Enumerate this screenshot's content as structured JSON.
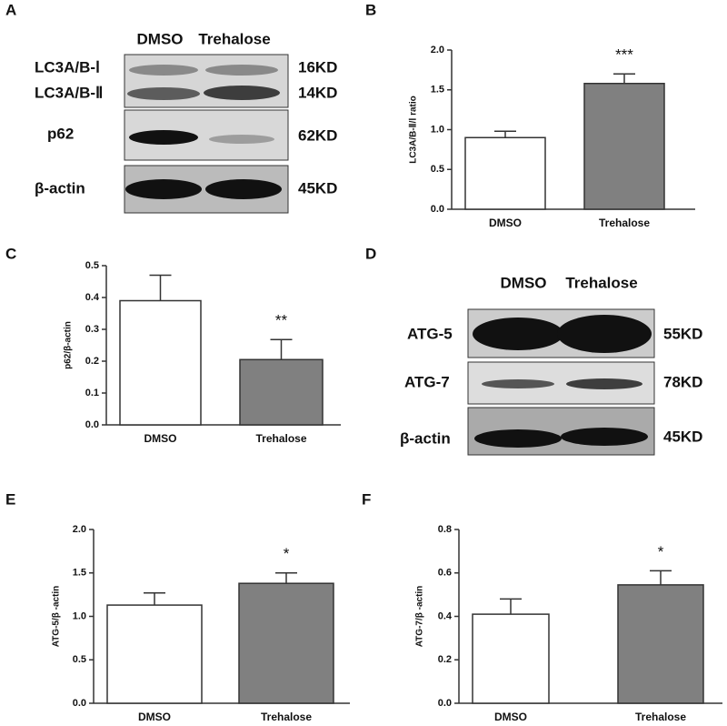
{
  "panel_labels": [
    "A",
    "B",
    "C",
    "D",
    "E",
    "F"
  ],
  "blot_a": {
    "columns": [
      "DMSO",
      "Trehalose"
    ],
    "rows": [
      {
        "label": "LC3A/B-Ⅰ",
        "size": "16KD"
      },
      {
        "label": "LC3A/B-Ⅱ",
        "size": "14KD"
      },
      {
        "label": "p62",
        "size": "62KD"
      },
      {
        "label": "β-actin",
        "size": "45KD"
      }
    ]
  },
  "blot_d": {
    "columns": [
      "DMSO",
      "Trehalose"
    ],
    "rows": [
      {
        "label": "ATG-5",
        "size": "55KD"
      },
      {
        "label": "ATG-7",
        "size": "78KD"
      },
      {
        "label": "β-actin",
        "size": "45KD"
      }
    ]
  },
  "chart_data": [
    {
      "type": "bar",
      "y_label": "LC3A/B-Ⅱ/Ⅰ ratio",
      "categories": [
        "DMSO",
        "Trehalose"
      ],
      "values": [
        0.9,
        1.58
      ],
      "errors": [
        0.08,
        0.12
      ],
      "colors": [
        "#ffffff",
        "#808080"
      ],
      "annotation": "***",
      "ylim": [
        0,
        2
      ],
      "yticks": [
        {
          "value": 0,
          "label": "0.0"
        },
        0.5,
        {
          "value": 1,
          "label": "1.0"
        },
        1.5,
        {
          "value": 2,
          "label": "2.0"
        }
      ]
    },
    {
      "type": "bar",
      "y_label": "p62/β-actin",
      "categories": [
        "DMSO",
        "Trehalose"
      ],
      "values": [
        0.39,
        0.205
      ],
      "errors": [
        0.08,
        0.063
      ],
      "colors": [
        "#ffffff",
        "#808080"
      ],
      "annotation": "**",
      "ylim": [
        0,
        0.5
      ],
      "yticks": [
        {
          "value": 0,
          "label": "0.0"
        },
        0.1,
        0.2,
        0.3,
        0.4,
        0.5
      ]
    },
    {
      "type": "bar",
      "y_label": "ATG-5/β -actin",
      "categories": [
        "DMSO",
        "Trehalose"
      ],
      "values": [
        1.13,
        1.38
      ],
      "errors": [
        0.14,
        0.12
      ],
      "colors": [
        "#ffffff",
        "#808080"
      ],
      "annotation": "*",
      "ylim": [
        0,
        2
      ],
      "yticks": [
        {
          "value": 0,
          "label": "0.0"
        },
        0.5,
        {
          "value": 1,
          "label": "1.0"
        },
        1.5,
        {
          "value": 2,
          "label": "2.0"
        }
      ]
    },
    {
      "type": "bar",
      "y_label": "ATG-7/β -actin",
      "categories": [
        "DMSO",
        "Trehalose"
      ],
      "values": [
        0.41,
        0.545
      ],
      "errors": [
        0.07,
        0.065
      ],
      "colors": [
        "#ffffff",
        "#808080"
      ],
      "annotation": "*",
      "ylim": [
        0,
        0.8
      ],
      "yticks": [
        {
          "value": 0,
          "label": "0.0"
        },
        0.2,
        0.4,
        0.6,
        0.8
      ]
    }
  ]
}
